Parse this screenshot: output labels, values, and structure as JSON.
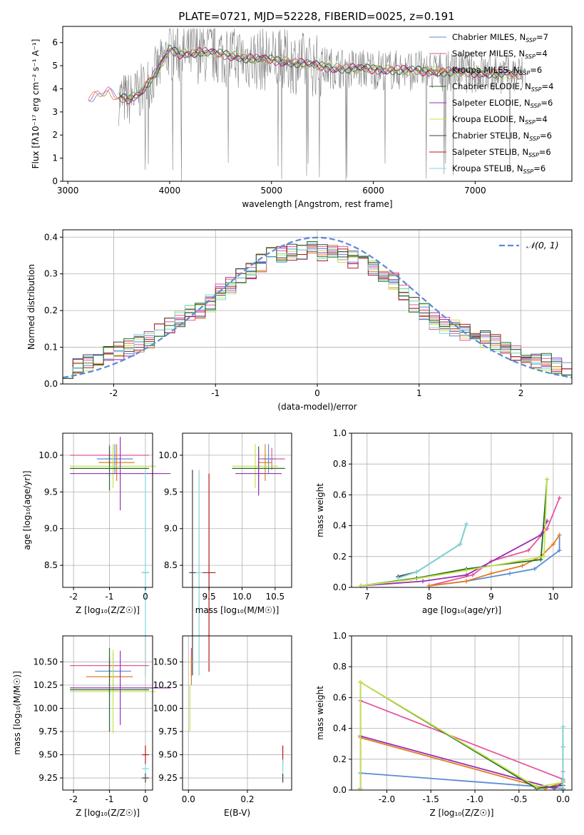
{
  "title": "PLATE=0721, MJD=52228, FIBERID=0025, z=0.191",
  "colors": {
    "chabrier_miles": "#5b8ad6",
    "salpeter_miles": "#e6559b",
    "kroupa_miles": "#e07f22",
    "chabrier_elodie": "#1f6e1f",
    "salpeter_elodie": "#9a2eb5",
    "kroupa_elodie": "#c7e24f",
    "chabrier_stelib": "#404040",
    "salpeter_stelib": "#b01b1b",
    "kroupa_stelib": "#7fd8d8",
    "data": "#808080",
    "gaussian": "#5b8ad6",
    "grid": "#b0b0b0"
  },
  "legend_spectrum": [
    {
      "text": "Chabrier MILES, N",
      "sub": "SSP",
      "tail": "=7"
    },
    {
      "text": "Salpeter MILES, N",
      "sub": "SSP",
      "tail": "=4"
    },
    {
      "text": "Kroupa MILES, N",
      "sub": "SSP",
      "tail": "=6"
    },
    {
      "text": "Chabrier ELODIE, N",
      "sub": "SSP",
      "tail": "=4"
    },
    {
      "text": "Salpeter ELODIE, N",
      "sub": "SSP",
      "tail": "=6"
    },
    {
      "text": "Kroupa ELODIE, N",
      "sub": "SSP",
      "tail": "=4"
    },
    {
      "text": "Chabrier STELIB, N",
      "sub": "SSP",
      "tail": "=6"
    },
    {
      "text": "Salpeter STELIB, N",
      "sub": "SSP",
      "tail": "=6"
    },
    {
      "text": "Kroupa STELIB, N",
      "sub": "SSP",
      "tail": "=6"
    }
  ],
  "chart_data": [
    {
      "type": "line",
      "ylabel": "Flux [fλ10⁻¹⁷ erg cm⁻² s⁻¹ A⁻¹]",
      "xlabel": "wavelength [Angstrom, rest frame]",
      "xlim": [
        2950,
        7950
      ],
      "ylim": [
        0,
        6.7
      ],
      "xticks": [
        3000,
        4000,
        5000,
        6000,
        7000
      ],
      "yticks": [
        0,
        1,
        2,
        3,
        4,
        5,
        6
      ],
      "model_continuum": {
        "x": [
          3200,
          3400,
          3500,
          3600,
          3700,
          3800,
          3900,
          4000,
          4100,
          4300,
          4500,
          4800,
          5000,
          5300,
          5600,
          6000,
          6300,
          6600,
          7000,
          7300,
          7500
        ],
        "y": [
          3.6,
          3.9,
          3.6,
          3.55,
          3.8,
          4.3,
          4.9,
          5.7,
          5.5,
          5.6,
          5.5,
          5.3,
          5.25,
          5.1,
          4.9,
          4.85,
          4.8,
          4.75,
          4.7,
          4.65,
          4.6
        ]
      }
    },
    {
      "type": "bar",
      "ylabel": "Normed distribution",
      "xlabel": "(data-model)/error",
      "xlim": [
        -2.5,
        2.5
      ],
      "ylim": [
        0,
        0.42
      ],
      "xticks": [
        -2,
        -1,
        0,
        1,
        2
      ],
      "yticks": [
        0.0,
        0.1,
        0.2,
        0.3,
        0.4
      ],
      "legend": "N(0,1)",
      "bin_width": 0.1,
      "histogram_centers": [
        -2.45,
        -2.35,
        -2.25,
        -2.15,
        -2.05,
        -1.95,
        -1.85,
        -1.75,
        -1.65,
        -1.55,
        -1.45,
        -1.35,
        -1.25,
        -1.15,
        -1.05,
        -0.95,
        -0.85,
        -0.75,
        -0.65,
        -0.55,
        -0.45,
        -0.35,
        -0.25,
        -0.15,
        -0.05,
        0.05,
        0.15,
        0.25,
        0.35,
        0.45,
        0.55,
        0.65,
        0.75,
        0.85,
        0.95,
        1.05,
        1.15,
        1.25,
        1.35,
        1.45,
        1.55,
        1.65,
        1.75,
        1.85,
        1.95,
        2.05,
        2.15,
        2.25,
        2.35,
        2.45
      ],
      "histogram_values": [
        0.04,
        0.05,
        0.06,
        0.07,
        0.08,
        0.09,
        0.1,
        0.11,
        0.12,
        0.14,
        0.16,
        0.18,
        0.19,
        0.2,
        0.22,
        0.25,
        0.27,
        0.29,
        0.31,
        0.33,
        0.35,
        0.35,
        0.36,
        0.36,
        0.37,
        0.36,
        0.36,
        0.35,
        0.34,
        0.33,
        0.32,
        0.3,
        0.28,
        0.25,
        0.22,
        0.2,
        0.17,
        0.16,
        0.15,
        0.14,
        0.13,
        0.12,
        0.11,
        0.09,
        0.08,
        0.07,
        0.06,
        0.06,
        0.05,
        0.04
      ]
    },
    {
      "type": "scatter",
      "ylabel": "age  [log₁₀(age/yr)]",
      "xlabel": "Z [log₁₀(Z/Z☉)]",
      "xlim": [
        -2.3,
        0.2
      ],
      "ylim": [
        8.2,
        10.3
      ],
      "xticks": [
        -2,
        -1,
        0
      ],
      "yticks": [
        8.5,
        9.0,
        9.5,
        10.0
      ],
      "points": [
        {
          "x": -1.0,
          "y": 10.0,
          "xerr": 1.1,
          "yerr": 0.15,
          "c": "salpeter_miles"
        },
        {
          "x": -0.8,
          "y": 9.9,
          "xerr": 0.5,
          "yerr": 0.25,
          "c": "kroupa_miles"
        },
        {
          "x": -0.85,
          "y": 9.95,
          "xerr": 0.5,
          "yerr": 0.2,
          "c": "chabrier_miles"
        },
        {
          "x": -0.9,
          "y": 9.85,
          "xerr": 1.2,
          "yerr": 0.3,
          "c": "kroupa_elodie"
        },
        {
          "x": -1.0,
          "y": 9.82,
          "xerr": 1.1,
          "yerr": 0.3,
          "c": "chabrier_elodie"
        },
        {
          "x": -0.7,
          "y": 9.75,
          "xerr": 1.4,
          "yerr": 0.5,
          "c": "salpeter_elodie"
        },
        {
          "x": 0.0,
          "y": 8.4,
          "xerr": 0.1,
          "yerr": 0.0,
          "c": "chabrier_stelib"
        },
        {
          "x": 0.0,
          "y": 8.4,
          "xerr": 0.1,
          "yerr": 1.4,
          "c": "kroupa_stelib"
        }
      ]
    },
    {
      "type": "scatter",
      "xlabel": "mass [log₁₀(M/M☉)]",
      "xlim": [
        9.1,
        10.75
      ],
      "ylim": [
        8.2,
        10.3
      ],
      "xticks": [
        9.5,
        10.0,
        10.5
      ],
      "yticks": [
        8.5,
        9.0,
        9.5,
        10.0
      ],
      "points": [
        {
          "x": 10.45,
          "y": 9.95,
          "xerr": 0.2,
          "yerr": 0.15,
          "c": "salpeter_miles"
        },
        {
          "x": 10.35,
          "y": 9.9,
          "xerr": 0.1,
          "yerr": 0.25,
          "c": "kroupa_miles"
        },
        {
          "x": 10.4,
          "y": 9.95,
          "xerr": 0.1,
          "yerr": 0.2,
          "c": "chabrier_miles"
        },
        {
          "x": 10.2,
          "y": 9.85,
          "xerr": 0.35,
          "yerr": 0.3,
          "c": "kroupa_elodie"
        },
        {
          "x": 10.25,
          "y": 9.82,
          "xerr": 0.4,
          "yerr": 0.3,
          "c": "chabrier_elodie"
        },
        {
          "x": 10.25,
          "y": 9.75,
          "xerr": 0.35,
          "yerr": 0.3,
          "c": "salpeter_elodie"
        },
        {
          "x": 9.25,
          "y": 8.4,
          "xerr": 0.05,
          "yerr": 1.4,
          "c": "chabrier_stelib"
        },
        {
          "x": 9.5,
          "y": 8.4,
          "xerr": 0.1,
          "yerr": 1.35,
          "c": "salpeter_stelib"
        },
        {
          "x": 9.35,
          "y": 8.4,
          "xerr": 0.05,
          "yerr": 1.4,
          "c": "kroupa_stelib"
        }
      ]
    },
    {
      "type": "line",
      "ylabel": "mass weight",
      "xlabel": "age  [log₁₀(age/yr)]",
      "xlim": [
        6.75,
        10.3
      ],
      "ylim": [
        0,
        1.0
      ],
      "xticks": [
        7,
        8,
        9,
        10
      ],
      "yticks": [
        0.0,
        0.2,
        0.4,
        0.6,
        0.8,
        1.0
      ],
      "series": [
        {
          "c": "chabrier_miles",
          "x": [
            8.0,
            8.6,
            9.3,
            9.7,
            10.1,
            10.1
          ],
          "y": [
            0.01,
            0.04,
            0.09,
            0.12,
            0.24,
            0.34
          ]
        },
        {
          "c": "salpeter_miles",
          "x": [
            8.0,
            8.7,
            9.0,
            9.6,
            9.9,
            10.1
          ],
          "y": [
            0.01,
            0.08,
            0.17,
            0.24,
            0.38,
            0.58
          ]
        },
        {
          "c": "kroupa_miles",
          "x": [
            8.0,
            8.6,
            9.0,
            9.5,
            9.8,
            10.0,
            10.1
          ],
          "y": [
            0.01,
            0.04,
            0.09,
            0.14,
            0.2,
            0.28,
            0.34
          ]
        },
        {
          "c": "chabrier_elodie",
          "x": [
            6.9,
            7.8,
            8.6,
            9.8,
            9.9
          ],
          "y": [
            0.01,
            0.06,
            0.12,
            0.18,
            0.7
          ]
        },
        {
          "c": "salpeter_elodie",
          "x": [
            6.9,
            7.9,
            8.6,
            9.8,
            9.9
          ],
          "y": [
            0.01,
            0.04,
            0.08,
            0.34,
            0.43
          ]
        },
        {
          "c": "kroupa_elodie",
          "x": [
            6.9,
            7.7,
            8.6,
            9.85,
            9.9
          ],
          "y": [
            0.01,
            0.05,
            0.11,
            0.2,
            0.7
          ]
        },
        {
          "c": "chabrier_stelib",
          "x": [
            7.5,
            7.8,
            8.5,
            8.6
          ],
          "y": [
            0.07,
            0.1,
            0.28,
            0.41
          ]
        },
        {
          "c": "kroupa_stelib",
          "x": [
            7.5,
            7.8,
            8.5,
            8.6
          ],
          "y": [
            0.06,
            0.1,
            0.28,
            0.41
          ]
        }
      ]
    },
    {
      "type": "scatter",
      "ylabel": "mass [log₁₀(M/M☉)]",
      "xlabel": "Z [log₁₀(Z/Z☉)]",
      "xlim": [
        -2.3,
        0.2
      ],
      "ylim": [
        9.12,
        10.78
      ],
      "xticks": [
        -2,
        -1,
        0
      ],
      "yticks": [
        9.25,
        9.5,
        9.75,
        10.0,
        10.25,
        10.5
      ],
      "points": [
        {
          "x": -1.0,
          "y": 10.46,
          "xerr": 1.1,
          "yerr": 0.1,
          "c": "salpeter_miles"
        },
        {
          "x": -1.0,
          "y": 10.34,
          "xerr": 0.65,
          "yerr": 0.2,
          "c": "kroupa_miles"
        },
        {
          "x": -0.9,
          "y": 10.4,
          "xerr": 0.5,
          "yerr": 0.2,
          "c": "chabrier_miles"
        },
        {
          "x": -0.9,
          "y": 10.18,
          "xerr": 1.2,
          "yerr": 0.45,
          "c": "kroupa_elodie"
        },
        {
          "x": -1.0,
          "y": 10.2,
          "xerr": 1.1,
          "yerr": 0.45,
          "c": "chabrier_elodie"
        },
        {
          "x": -0.7,
          "y": 10.22,
          "xerr": 1.4,
          "yerr": 0.4,
          "c": "salpeter_elodie"
        },
        {
          "x": 0.0,
          "y": 9.25,
          "xerr": 0.1,
          "yerr": 0.05,
          "c": "chabrier_stelib"
        },
        {
          "x": 0.0,
          "y": 9.5,
          "xerr": 0.1,
          "yerr": 0.1,
          "c": "salpeter_stelib"
        },
        {
          "x": 0.0,
          "y": 9.35,
          "xerr": 0.1,
          "yerr": 0.05,
          "c": "kroupa_stelib"
        }
      ]
    },
    {
      "type": "scatter",
      "xlabel": "E(B-V)",
      "xlim": [
        -0.02,
        0.35
      ],
      "ylim": [
        9.12,
        10.78
      ],
      "xticks": [
        0.0,
        0.2
      ],
      "yticks": [
        9.25,
        9.5,
        9.75,
        10.0,
        10.25,
        10.5
      ],
      "points": [
        {
          "x": 0.01,
          "y": 10.5,
          "xerr": 0,
          "yerr": 0.15,
          "c": "salpeter_miles"
        },
        {
          "x": 0.01,
          "y": 10.4,
          "xerr": 0,
          "yerr": 0.15,
          "c": "kroupa_miles"
        },
        {
          "x": 0.005,
          "y": 10.0,
          "xerr": 0,
          "yerr": 0.25,
          "c": "kroupa_elodie"
        },
        {
          "x": 0.32,
          "y": 9.25,
          "xerr": 0,
          "yerr": 0.05,
          "c": "chabrier_stelib"
        },
        {
          "x": 0.32,
          "y": 9.5,
          "xerr": 0,
          "yerr": 0.1,
          "c": "salpeter_stelib"
        },
        {
          "x": 0.32,
          "y": 9.38,
          "xerr": 0,
          "yerr": 0.07,
          "c": "kroupa_stelib"
        }
      ]
    },
    {
      "type": "line",
      "ylabel": "mass weight",
      "xlabel": "Z [log₁₀(Z/Z☉)]",
      "xlim": [
        -2.4,
        0.1
      ],
      "ylim": [
        0,
        1.0
      ],
      "xticks": [
        -2.0,
        -1.5,
        -1.0,
        -0.5,
        0.0
      ],
      "yticks": [
        0.0,
        0.2,
        0.4,
        0.6,
        0.8,
        1.0
      ],
      "series": [
        {
          "c": "chabrier_miles",
          "x": [
            -2.3,
            -2.3,
            0.0,
            0.0
          ],
          "y": [
            0.01,
            0.11,
            0.01,
            0.06
          ]
        },
        {
          "c": "salpeter_miles",
          "x": [
            -2.3,
            -2.3,
            0.0,
            0.0
          ],
          "y": [
            0.01,
            0.58,
            0.07,
            0.12
          ]
        },
        {
          "c": "kroupa_miles",
          "x": [
            -2.3,
            -2.3,
            -0.2,
            0.0
          ],
          "y": [
            0.01,
            0.34,
            0.01,
            0.05
          ]
        },
        {
          "c": "chabrier_elodie",
          "x": [
            -2.3,
            -2.3,
            -0.3,
            0.0
          ],
          "y": [
            0.01,
            0.7,
            0.01,
            0.03
          ]
        },
        {
          "c": "salpeter_elodie",
          "x": [
            -2.3,
            -2.3,
            -0.1,
            0.0
          ],
          "y": [
            0.01,
            0.35,
            0.01,
            0.05
          ]
        },
        {
          "c": "kroupa_elodie",
          "x": [
            -2.3,
            -2.3,
            -0.3,
            0.0
          ],
          "y": [
            0.01,
            0.7,
            0.02,
            0.05
          ]
        },
        {
          "c": "chabrier_stelib",
          "x": [
            0.0,
            0.0,
            0.0
          ],
          "y": [
            0.0,
            0.28,
            0.41
          ]
        },
        {
          "c": "kroupa_stelib",
          "x": [
            0.0,
            0.0,
            0.0
          ],
          "y": [
            0.0,
            0.28,
            0.41
          ]
        }
      ]
    }
  ]
}
